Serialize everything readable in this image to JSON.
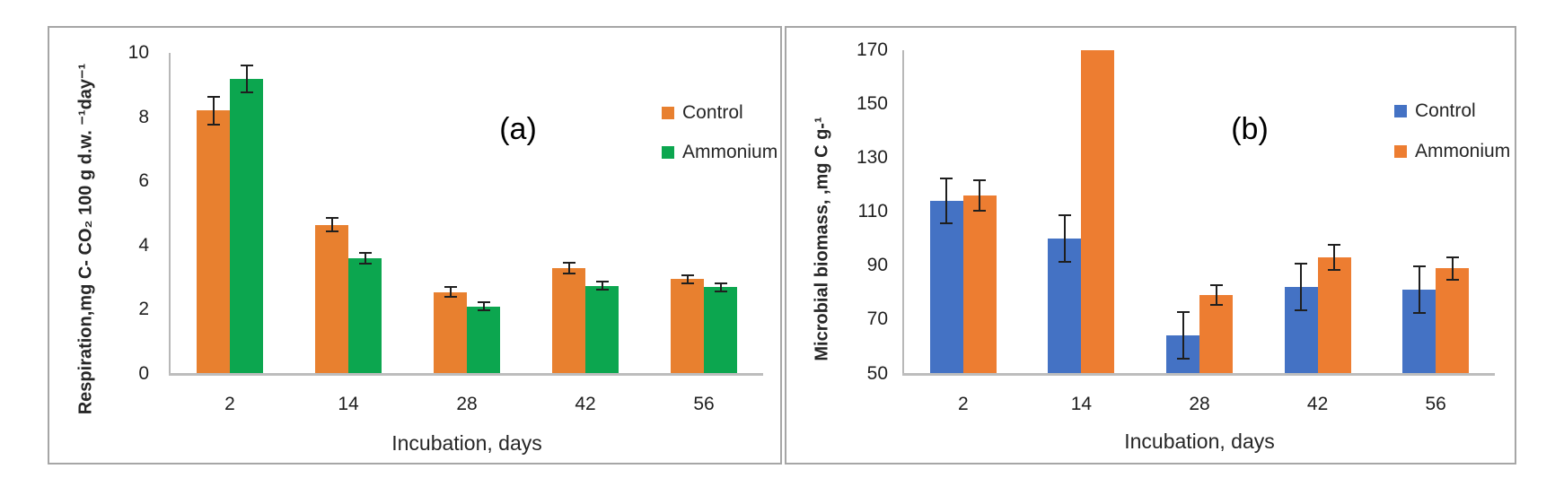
{
  "chart_data": [
    {
      "type": "bar",
      "panel": "(a)",
      "xlabel": "Incubation, days",
      "ylabel": "Respiration,mg C- CO₂ 100 g d.w. ⁻¹day⁻¹",
      "categories": [
        "2",
        "14",
        "28",
        "42",
        "56"
      ],
      "yticks": [
        0,
        2,
        4,
        6,
        8,
        10
      ],
      "ylim": [
        0,
        10
      ],
      "grid": false,
      "legend_position": "right-top",
      "error_bars": true,
      "series": [
        {
          "name": "Control",
          "color": "#E8802F",
          "values": [
            8.2,
            4.65,
            2.55,
            3.3,
            2.95
          ],
          "errors": [
            0.45,
            0.25,
            0.18,
            0.2,
            0.15
          ]
        },
        {
          "name": "Ammonium",
          "color": "#0CA64F",
          "values": [
            9.2,
            3.6,
            2.1,
            2.75,
            2.7
          ],
          "errors": [
            0.45,
            0.2,
            0.15,
            0.15,
            0.15
          ]
        }
      ]
    },
    {
      "type": "bar",
      "panel": "(b)",
      "xlabel": "Incubation, days",
      "ylabel": "Microbial biomass, ,mg C g-¹",
      "categories": [
        "2",
        "14",
        "28",
        "42",
        "56"
      ],
      "yticks": [
        50,
        70,
        90,
        110,
        130,
        150,
        170
      ],
      "ylim": [
        50,
        170
      ],
      "grid": false,
      "legend_position": "right-top",
      "error_bars": true,
      "series": [
        {
          "name": "Control",
          "color": "#4472C4",
          "values": [
            114,
            100,
            64,
            82,
            81
          ],
          "errors": [
            8.5,
            9,
            9,
            9,
            9
          ]
        },
        {
          "name": "Ammonium",
          "color": "#ED7D31",
          "values": [
            116,
            170,
            79,
            93,
            89
          ],
          "errors": [
            6,
            null,
            4,
            5,
            4.5
          ]
        }
      ]
    }
  ]
}
